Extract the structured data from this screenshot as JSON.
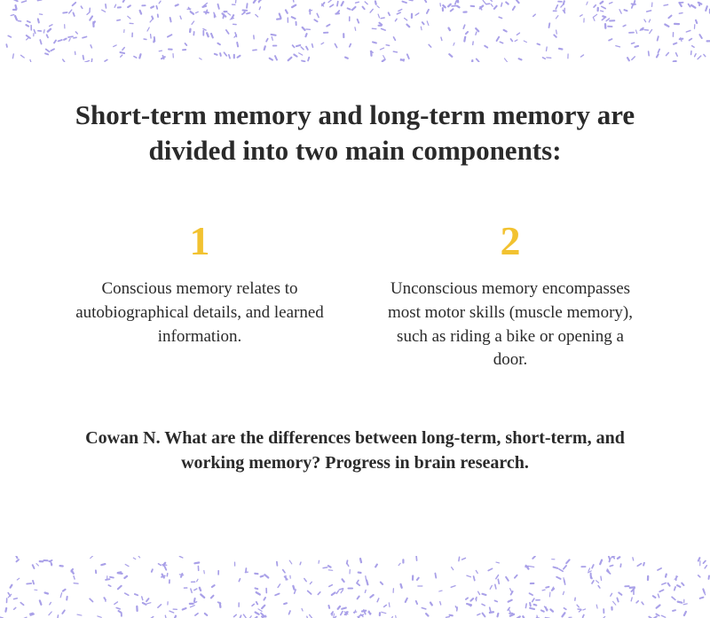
{
  "title": "Short-term memory and long-term memory are divided into two main components:",
  "columns": [
    {
      "number": "1",
      "description": "Conscious memory relates to autobiographical details, and learned information."
    },
    {
      "number": "2",
      "description": "Unconscious memory encompasses most motor skills (muscle memory), such as riding a bike or opening a door."
    }
  ],
  "citation": "Cowan N. What are the differences between long-term, short-term, and working memory? Progress in brain research.",
  "style": {
    "background_color": "#ffffff",
    "text_color": "#2a2a2a",
    "accent_color": "#f2c230",
    "dot_color": "#a9a0e8",
    "title_fontsize": 31,
    "title_weight": 700,
    "number_fontsize": 46,
    "number_weight": 700,
    "desc_fontsize": 19,
    "citation_fontsize": 20,
    "citation_weight": 700,
    "dot_band_height": 70,
    "dot_count_per_band": 380,
    "dot_min_size": 1.1,
    "dot_max_size": 2.3,
    "dot_min_len": 2.8,
    "dot_max_len": 5.2
  }
}
